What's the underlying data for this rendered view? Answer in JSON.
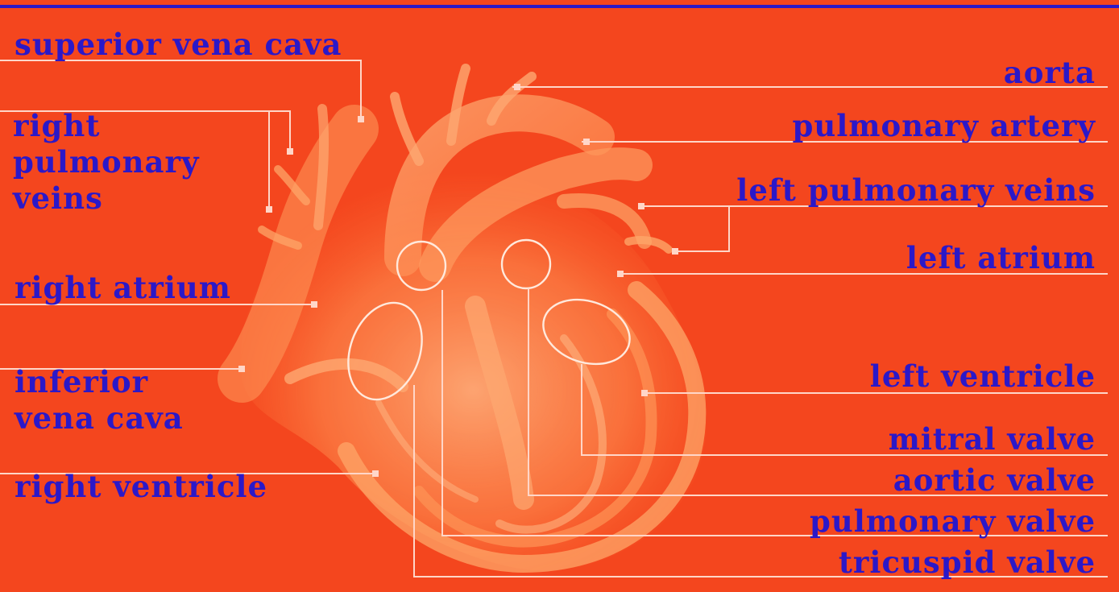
{
  "diagram": {
    "colors": {
      "background": "#f4461e",
      "label": "#2b18c8",
      "leader_line": "#ffd6c8",
      "heart_light": "#ffb070",
      "heart_mid": "#ff8a4a",
      "top_rule": "#2b18c8"
    },
    "left_labels": {
      "superior_vena_cava": "superior vena cava",
      "right_pulmonary_veins": "right\npulmonary\nveins",
      "right_atrium": "right atrium",
      "inferior_vena_cava": "inferior\nvena cava",
      "right_ventricle": "right ventricle"
    },
    "right_labels": {
      "aorta": "aorta",
      "pulmonary_artery": "pulmonary artery",
      "left_pulmonary_veins": "left pulmonary veins",
      "left_atrium": "left atrium",
      "left_ventricle": "left ventricle",
      "mitral_valve": "mitral valve",
      "aortic_valve": "aortic valve",
      "pulmonary_valve": "pulmonary valve",
      "tricuspid_valve": "tricuspid valve"
    }
  }
}
